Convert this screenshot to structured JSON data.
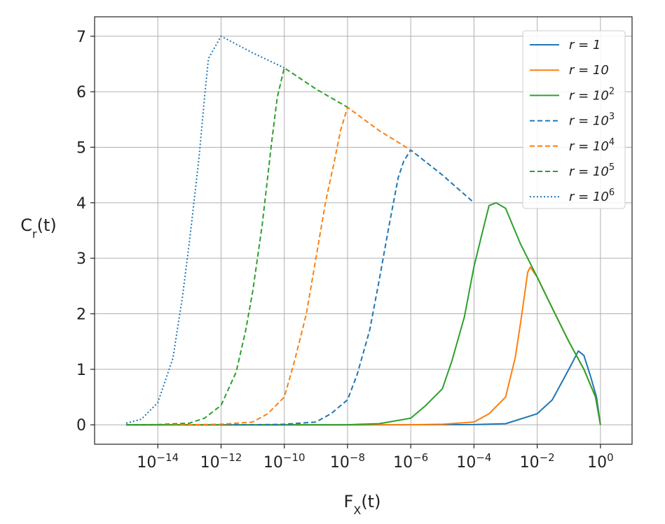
{
  "chart_data": {
    "type": "line",
    "xscale": "log",
    "xlabel": {
      "base": "F",
      "sub": "X",
      "rest": "(t)"
    },
    "ylabel": {
      "base": "C",
      "sub": "r",
      "rest": "(t)"
    },
    "xlim": [
      1e-16,
      10
    ],
    "ylim": [
      -0.35,
      7.35
    ],
    "grid": true,
    "legend_position": "top-right",
    "x_ticks": [
      {
        "value": 1e-14,
        "base": "10",
        "exp": "−14"
      },
      {
        "value": 1e-12,
        "base": "10",
        "exp": "−12"
      },
      {
        "value": 1e-10,
        "base": "10",
        "exp": "−10"
      },
      {
        "value": 1e-08,
        "base": "10",
        "exp": "−8"
      },
      {
        "value": 1e-06,
        "base": "10",
        "exp": "−6"
      },
      {
        "value": 0.0001,
        "base": "10",
        "exp": "−4"
      },
      {
        "value": 0.01,
        "base": "10",
        "exp": "−2"
      },
      {
        "value": 1,
        "base": "10",
        "exp": "0"
      }
    ],
    "y_ticks": [
      0,
      1,
      2,
      3,
      4,
      5,
      6,
      7
    ],
    "series": [
      {
        "name": "r = 1",
        "label_base": "r = 1",
        "label_exp": "",
        "color": "#1f77b4",
        "style": "solid",
        "points": [
          [
            1e-15,
            0
          ],
          [
            1e-10,
            2e-05
          ],
          [
            1e-08,
            0.0001
          ],
          [
            1e-06,
            0.001
          ],
          [
            0.0001,
            0.004
          ],
          [
            0.001,
            0.02
          ],
          [
            0.01,
            0.2
          ],
          [
            0.03,
            0.45
          ],
          [
            0.1,
            1.0
          ],
          [
            0.2,
            1.33
          ],
          [
            0.3,
            1.25
          ],
          [
            0.5,
            0.85
          ],
          [
            0.75,
            0.5
          ],
          [
            1,
            0
          ]
        ]
      },
      {
        "name": "r = 10",
        "label_base": "r = 10",
        "label_exp": "",
        "color": "#ff7f0e",
        "style": "solid",
        "points": [
          [
            1e-15,
            0
          ],
          [
            1e-08,
            0.0001
          ],
          [
            1e-06,
            0.001
          ],
          [
            1e-05,
            0.01
          ],
          [
            0.0001,
            0.05
          ],
          [
            0.0003,
            0.2
          ],
          [
            0.001,
            0.5
          ],
          [
            0.002,
            1.2
          ],
          [
            0.003,
            1.85
          ],
          [
            0.004,
            2.35
          ],
          [
            0.005,
            2.75
          ],
          [
            0.006,
            2.84
          ],
          [
            0.01,
            2.66
          ],
          [
            0.03,
            2.1
          ],
          [
            0.1,
            1.5
          ],
          [
            0.3,
            1.0
          ],
          [
            0.7,
            0.5
          ],
          [
            1,
            0
          ]
        ]
      },
      {
        "name": "r = 10^2",
        "label_base": "r = 10",
        "label_exp": "2",
        "color": "#2ca02c",
        "style": "solid",
        "points": [
          [
            1e-15,
            0
          ],
          [
            1e-10,
            0.0002
          ],
          [
            1e-08,
            0.002
          ],
          [
            1e-07,
            0.02
          ],
          [
            1e-06,
            0.12
          ],
          [
            3e-06,
            0.35
          ],
          [
            1e-05,
            0.65
          ],
          [
            2e-05,
            1.15
          ],
          [
            5e-05,
            1.95
          ],
          [
            0.0001,
            2.85
          ],
          [
            0.0002,
            3.55
          ],
          [
            0.0003,
            3.95
          ],
          [
            0.0005,
            4.0
          ],
          [
            0.001,
            3.9
          ],
          [
            0.003,
            3.25
          ],
          [
            0.01,
            2.66
          ],
          [
            0.03,
            2.1
          ],
          [
            0.1,
            1.5
          ],
          [
            0.3,
            1.0
          ],
          [
            0.7,
            0.5
          ],
          [
            1,
            0
          ]
        ]
      },
      {
        "name": "r = 10^3",
        "label_base": "r = 10",
        "label_exp": "3",
        "color": "#1f77b4",
        "style": "dashed",
        "points": [
          [
            1e-15,
            0
          ],
          [
            1e-11,
            0.001
          ],
          [
            1e-10,
            0.01
          ],
          [
            1e-09,
            0.05
          ],
          [
            3e-09,
            0.2
          ],
          [
            1e-08,
            0.45
          ],
          [
            2e-08,
            0.9
          ],
          [
            5e-08,
            1.7
          ],
          [
            1e-07,
            2.6
          ],
          [
            2e-07,
            3.55
          ],
          [
            4e-07,
            4.45
          ],
          [
            6e-07,
            4.75
          ],
          [
            1e-06,
            4.95
          ],
          [
            1e-05,
            4.5
          ],
          [
            0.0001,
            4.0
          ]
        ]
      },
      {
        "name": "r = 10^4",
        "label_base": "r = 10",
        "label_exp": "4",
        "color": "#ff7f0e",
        "style": "dashed",
        "points": [
          [
            1e-15,
            0
          ],
          [
            1e-13,
            0.001
          ],
          [
            1e-12,
            0.01
          ],
          [
            1e-11,
            0.05
          ],
          [
            3e-11,
            0.2
          ],
          [
            1e-10,
            0.5
          ],
          [
            2e-10,
            1.1
          ],
          [
            5e-10,
            2.0
          ],
          [
            1e-09,
            3.0
          ],
          [
            2e-09,
            4.0
          ],
          [
            4e-09,
            4.8
          ],
          [
            6e-09,
            5.3
          ],
          [
            1e-08,
            5.72
          ],
          [
            1e-07,
            5.3
          ],
          [
            1e-06,
            4.95
          ]
        ]
      },
      {
        "name": "r = 10^5",
        "label_base": "r = 10",
        "label_exp": "5",
        "color": "#2ca02c",
        "style": "dashed",
        "points": [
          [
            1e-15,
            0
          ],
          [
            1e-14,
            0.005
          ],
          [
            1e-13,
            0.03
          ],
          [
            3e-13,
            0.12
          ],
          [
            1e-12,
            0.35
          ],
          [
            3e-12,
            0.95
          ],
          [
            6e-12,
            1.7
          ],
          [
            1e-11,
            2.4
          ],
          [
            2e-11,
            3.6
          ],
          [
            4e-11,
            5.1
          ],
          [
            6e-11,
            5.9
          ],
          [
            1e-10,
            6.43
          ],
          [
            1e-09,
            6.05
          ],
          [
            1e-08,
            5.72
          ]
        ]
      },
      {
        "name": "r = 10^6",
        "label_base": "r = 10",
        "label_exp": "6",
        "color": "#1f77b4",
        "style": "dotted",
        "points": [
          [
            1e-15,
            0.03
          ],
          [
            3e-15,
            0.1
          ],
          [
            1e-14,
            0.4
          ],
          [
            3e-14,
            1.2
          ],
          [
            6e-14,
            2.3
          ],
          [
            1e-13,
            3.3
          ],
          [
            2e-13,
            4.8
          ],
          [
            3e-13,
            5.9
          ],
          [
            4e-13,
            6.6
          ],
          [
            1e-12,
            7.0
          ],
          [
            1e-11,
            6.7
          ],
          [
            1e-10,
            6.43
          ]
        ]
      }
    ]
  }
}
